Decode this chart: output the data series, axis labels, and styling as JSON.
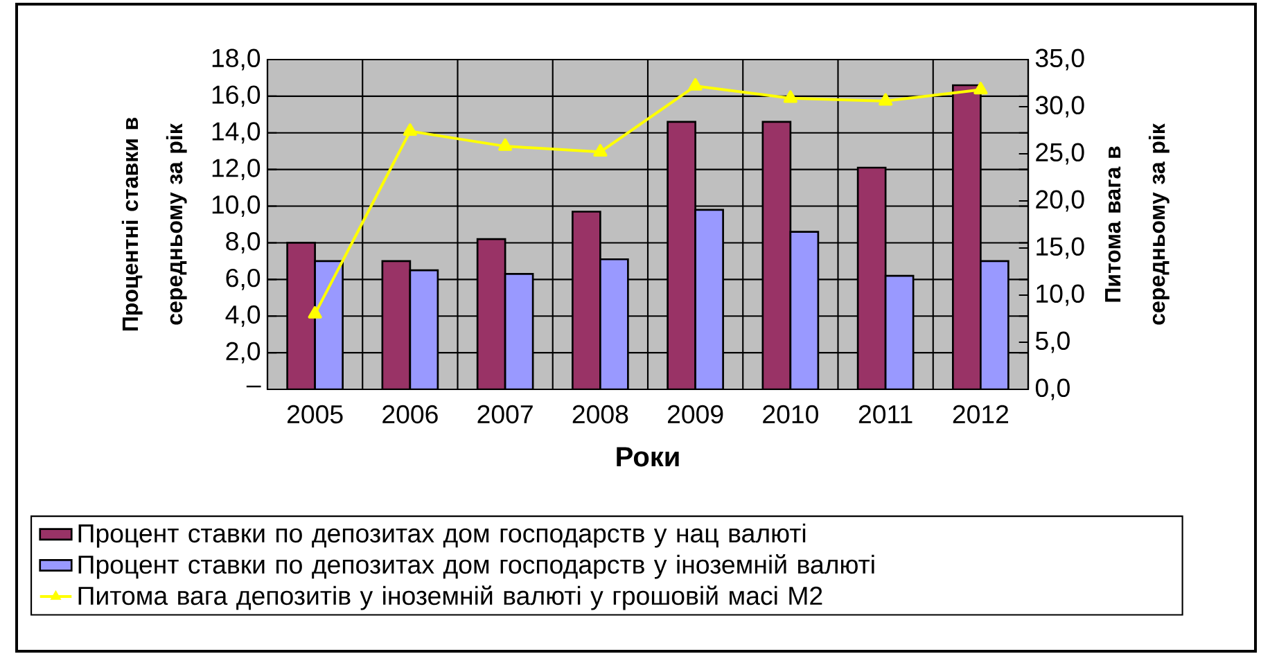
{
  "chart_data": {
    "type": "bar",
    "categories": [
      "2005",
      "2006",
      "2007",
      "2008",
      "2009",
      "2010",
      "2011",
      "2012"
    ],
    "series": [
      {
        "name": "Процент ставки по депозитах дом господарств у нац валюті",
        "color": "#993366",
        "values": [
          8.0,
          7.0,
          8.2,
          9.7,
          14.6,
          14.6,
          12.1,
          16.6
        ]
      },
      {
        "name": "Процент ставки по депозитах дом господарств у іноземній валюті",
        "color": "#9999ff",
        "values": [
          7.0,
          6.5,
          6.3,
          7.1,
          9.8,
          8.6,
          6.2,
          7.0
        ]
      },
      {
        "name": "Питома вага депозитів у іноземній валюті у грошовій масі М2",
        "color": "#ffff00",
        "type": "line",
        "axis": "y2",
        "marker": "triangle",
        "values": [
          8.0,
          27.4,
          25.8,
          25.2,
          32.2,
          30.9,
          30.6,
          31.8
        ]
      }
    ],
    "xlabel": "Роки",
    "ylabel": "Процентні ставки в середньому за рік",
    "y2label": "Питома вага в середньому за рік",
    "ylim": [
      0,
      18
    ],
    "yticks": [
      {
        "value": 0,
        "label": "–"
      },
      {
        "value": 2,
        "label": "2,0"
      },
      {
        "value": 4,
        "label": "4,0"
      },
      {
        "value": 6,
        "label": "6,0"
      },
      {
        "value": 8,
        "label": "8,0"
      },
      {
        "value": 10,
        "label": "10,0"
      },
      {
        "value": 12,
        "label": "12,0"
      },
      {
        "value": 14,
        "label": "14,0"
      },
      {
        "value": 16,
        "label": "16,0"
      },
      {
        "value": 18,
        "label": "18,0"
      }
    ],
    "y2lim": [
      0,
      35
    ],
    "y2ticks": [
      {
        "value": 0,
        "label": "0,0"
      },
      {
        "value": 5,
        "label": "5,0"
      },
      {
        "value": 10,
        "label": "10,0"
      },
      {
        "value": 15,
        "label": "15,0"
      },
      {
        "value": 20,
        "label": "20,0"
      },
      {
        "value": 25,
        "label": "25,0"
      },
      {
        "value": 30,
        "label": "30,0"
      },
      {
        "value": 35,
        "label": "35,0"
      }
    ],
    "grid": true,
    "legend": "bottom"
  }
}
